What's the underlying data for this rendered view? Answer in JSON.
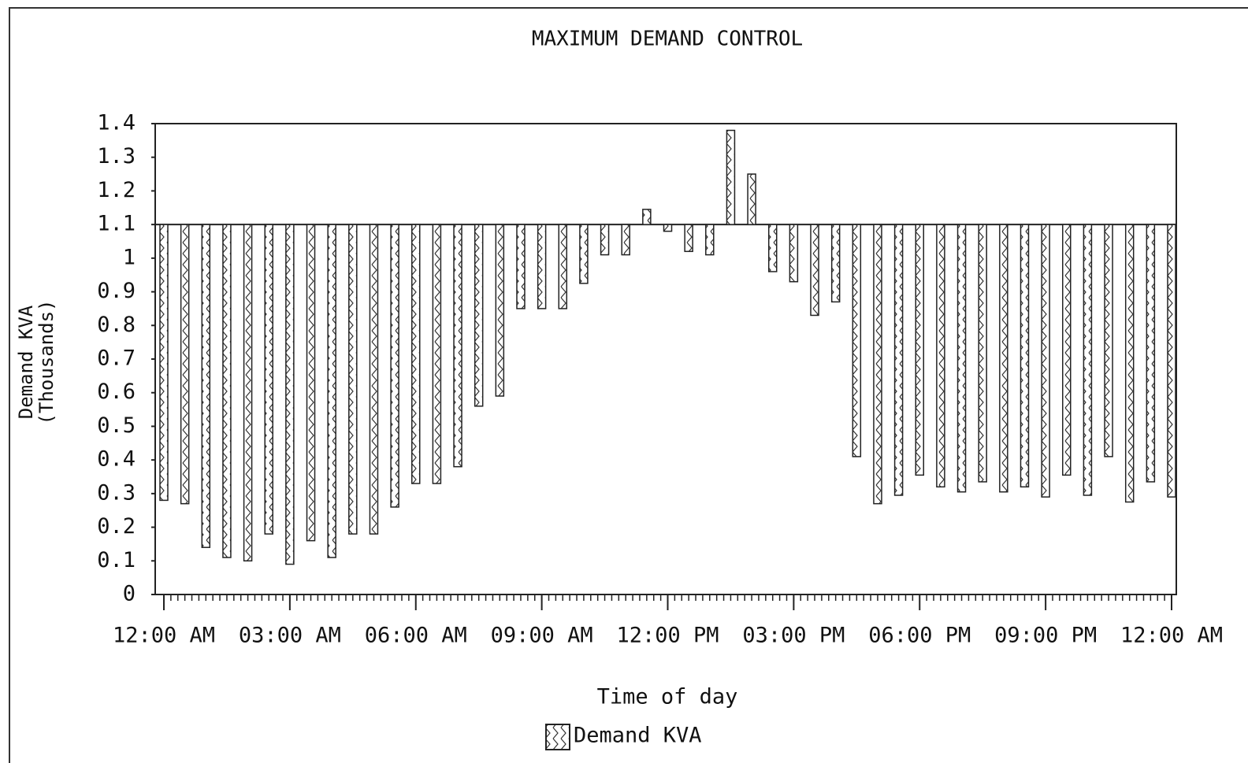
{
  "chart_data": {
    "type": "floating_bar",
    "title": "MAXIMUM DEMAND CONTROL",
    "x_label": "Time of day",
    "y_label": "Demand KVA",
    "y_label_units": "(Thousands)",
    "baseline": 1.1,
    "categories": [
      "12:00 AM",
      null,
      null,
      null,
      null,
      null,
      "03:00 AM",
      null,
      null,
      null,
      null,
      null,
      "06:00 AM",
      null,
      null,
      null,
      null,
      null,
      "09:00 AM",
      null,
      null,
      null,
      null,
      null,
      "12:00 PM",
      null,
      null,
      null,
      null,
      null,
      "03:00 PM",
      null,
      null,
      null,
      null,
      null,
      "06:00 PM",
      null,
      null,
      null,
      null,
      null,
      "09:00 PM",
      null,
      null,
      null,
      null,
      null,
      "12:00 AM"
    ],
    "series": [
      {
        "name": "Demand KVA",
        "color": "#222222",
        "values": [
          0.28,
          0.27,
          0.14,
          0.11,
          0.1,
          0.18,
          0.09,
          0.16,
          0.11,
          0.18,
          0.18,
          0.26,
          0.33,
          0.33,
          0.38,
          0.56,
          0.59,
          0.85,
          0.85,
          0.85,
          0.925,
          1.01,
          1.01,
          1.145,
          1.08,
          1.02,
          1.01,
          1.38,
          1.25,
          0.96,
          0.93,
          0.83,
          0.87,
          0.41,
          0.27,
          0.295,
          0.355,
          0.32,
          0.305,
          0.335,
          0.305,
          0.32,
          0.29,
          0.355,
          0.295,
          0.41,
          0.275,
          0.335,
          0.29
        ]
      }
    ],
    "ylim": [
      0,
      1.4
    ],
    "yticks": [
      0,
      0.1,
      0.2,
      0.3,
      0.4,
      0.5,
      0.6,
      0.7,
      0.8,
      0.9,
      1,
      1.1,
      1.2,
      1.3,
      1.4
    ],
    "legend": "bottom"
  }
}
